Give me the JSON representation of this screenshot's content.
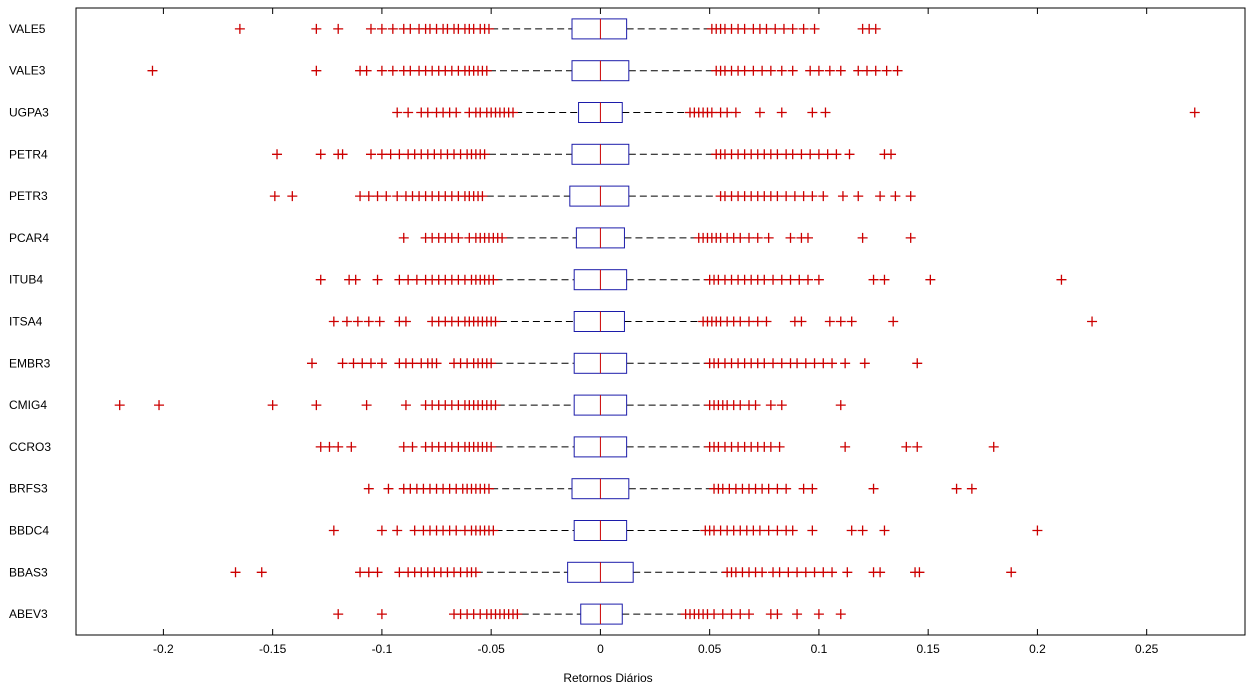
{
  "chart_data": {
    "type": "boxplot",
    "orientation": "horizontal",
    "xlabel": "Retornos Diários",
    "xlim": [
      -0.24,
      0.295
    ],
    "xticks": [
      -0.2,
      -0.15,
      -0.1,
      -0.05,
      0,
      0.05,
      0.1,
      0.15,
      0.2,
      0.25
    ],
    "xtick_labels": [
      "-0.2",
      "-0.15",
      "-0.1",
      "-0.05",
      "0",
      "0.05",
      "0.1",
      "0.15",
      "0.2",
      "0.25"
    ],
    "grid": false,
    "colors": {
      "box": "#1c1caa",
      "median": "#cc0000",
      "outlier": "#cc0000",
      "whisker": "#000000"
    },
    "series": [
      {
        "name": "VALE5",
        "q1": -0.013,
        "median": 0.0,
        "q3": 0.012,
        "whisker_low": -0.05,
        "whisker_high": 0.05,
        "outliers": [
          -0.165,
          -0.13,
          -0.12,
          -0.105,
          -0.1,
          -0.095,
          -0.09,
          -0.087,
          -0.083,
          -0.08,
          -0.078,
          -0.075,
          -0.072,
          -0.07,
          -0.067,
          -0.065,
          -0.062,
          -0.06,
          -0.058,
          -0.055,
          -0.053,
          -0.051,
          0.051,
          0.053,
          0.055,
          0.057,
          0.06,
          0.063,
          0.066,
          0.07,
          0.073,
          0.076,
          0.08,
          0.084,
          0.088,
          0.093,
          0.098,
          0.12,
          0.123,
          0.126
        ]
      },
      {
        "name": "VALE3",
        "q1": -0.013,
        "median": 0.0,
        "q3": 0.013,
        "whisker_low": -0.051,
        "whisker_high": 0.052,
        "outliers": [
          -0.205,
          -0.13,
          -0.11,
          -0.107,
          -0.1,
          -0.095,
          -0.09,
          -0.087,
          -0.083,
          -0.08,
          -0.077,
          -0.074,
          -0.071,
          -0.068,
          -0.065,
          -0.062,
          -0.06,
          -0.058,
          -0.056,
          -0.054,
          -0.052,
          0.053,
          0.055,
          0.057,
          0.06,
          0.063,
          0.066,
          0.07,
          0.074,
          0.078,
          0.083,
          0.088,
          0.096,
          0.1,
          0.105,
          0.11,
          0.118,
          0.122,
          0.126,
          0.131,
          0.136
        ]
      },
      {
        "name": "UGPA3",
        "q1": -0.01,
        "median": 0.0,
        "q3": 0.01,
        "whisker_low": -0.039,
        "whisker_high": 0.041,
        "outliers": [
          -0.093,
          -0.088,
          -0.082,
          -0.079,
          -0.075,
          -0.072,
          -0.069,
          -0.066,
          -0.06,
          -0.057,
          -0.055,
          -0.052,
          -0.05,
          -0.048,
          -0.046,
          -0.044,
          -0.042,
          -0.04,
          0.041,
          0.043,
          0.045,
          0.047,
          0.049,
          0.051,
          0.055,
          0.058,
          0.062,
          0.073,
          0.083,
          0.097,
          0.103,
          0.272
        ]
      },
      {
        "name": "PETR4",
        "q1": -0.013,
        "median": 0.0,
        "q3": 0.013,
        "whisker_low": -0.051,
        "whisker_high": 0.052,
        "outliers": [
          -0.148,
          -0.128,
          -0.12,
          -0.118,
          -0.105,
          -0.1,
          -0.096,
          -0.092,
          -0.088,
          -0.085,
          -0.082,
          -0.079,
          -0.076,
          -0.073,
          -0.07,
          -0.067,
          -0.064,
          -0.061,
          -0.059,
          -0.057,
          -0.055,
          -0.053,
          0.053,
          0.055,
          0.057,
          0.06,
          0.063,
          0.066,
          0.069,
          0.072,
          0.075,
          0.078,
          0.081,
          0.085,
          0.088,
          0.092,
          0.096,
          0.1,
          0.104,
          0.108,
          0.114,
          0.13,
          0.133
        ]
      },
      {
        "name": "PETR3",
        "q1": -0.014,
        "median": 0.0,
        "q3": 0.013,
        "whisker_low": -0.052,
        "whisker_high": 0.053,
        "outliers": [
          -0.149,
          -0.141,
          -0.11,
          -0.106,
          -0.102,
          -0.098,
          -0.093,
          -0.089,
          -0.086,
          -0.083,
          -0.08,
          -0.077,
          -0.074,
          -0.071,
          -0.068,
          -0.065,
          -0.062,
          -0.06,
          -0.058,
          -0.056,
          -0.054,
          0.055,
          0.057,
          0.06,
          0.063,
          0.066,
          0.069,
          0.072,
          0.075,
          0.078,
          0.081,
          0.085,
          0.089,
          0.093,
          0.097,
          0.102,
          0.111,
          0.118,
          0.128,
          0.135,
          0.142
        ]
      },
      {
        "name": "PCAR4",
        "q1": -0.011,
        "median": 0.0,
        "q3": 0.011,
        "whisker_low": -0.043,
        "whisker_high": 0.044,
        "outliers": [
          -0.09,
          -0.08,
          -0.077,
          -0.074,
          -0.071,
          -0.068,
          -0.065,
          -0.06,
          -0.057,
          -0.055,
          -0.053,
          -0.051,
          -0.049,
          -0.047,
          -0.045,
          0.045,
          0.047,
          0.049,
          0.051,
          0.053,
          0.055,
          0.058,
          0.061,
          0.064,
          0.068,
          0.072,
          0.077,
          0.087,
          0.092,
          0.095,
          0.12,
          0.142
        ]
      },
      {
        "name": "ITUB4",
        "q1": -0.012,
        "median": 0.0,
        "q3": 0.012,
        "whisker_low": -0.048,
        "whisker_high": 0.049,
        "outliers": [
          -0.128,
          -0.115,
          -0.112,
          -0.102,
          -0.092,
          -0.088,
          -0.084,
          -0.08,
          -0.077,
          -0.074,
          -0.071,
          -0.068,
          -0.065,
          -0.062,
          -0.059,
          -0.057,
          -0.055,
          -0.053,
          -0.051,
          -0.049,
          0.05,
          0.052,
          0.054,
          0.057,
          0.06,
          0.063,
          0.066,
          0.069,
          0.072,
          0.075,
          0.079,
          0.083,
          0.087,
          0.091,
          0.095,
          0.1,
          0.125,
          0.13,
          0.151,
          0.211
        ]
      },
      {
        "name": "ITSA4",
        "q1": -0.012,
        "median": 0.0,
        "q3": 0.011,
        "whisker_low": -0.046,
        "whisker_high": 0.047,
        "outliers": [
          -0.122,
          -0.116,
          -0.111,
          -0.106,
          -0.101,
          -0.092,
          -0.089,
          -0.077,
          -0.074,
          -0.071,
          -0.068,
          -0.065,
          -0.062,
          -0.06,
          -0.058,
          -0.056,
          -0.054,
          -0.052,
          -0.05,
          -0.048,
          0.047,
          0.049,
          0.051,
          0.053,
          0.055,
          0.058,
          0.061,
          0.064,
          0.068,
          0.072,
          0.076,
          0.089,
          0.092,
          0.105,
          0.11,
          0.115,
          0.134,
          0.225
        ]
      },
      {
        "name": "EMBR3",
        "q1": -0.012,
        "median": 0.0,
        "q3": 0.012,
        "whisker_low": -0.048,
        "whisker_high": 0.05,
        "outliers": [
          -0.132,
          -0.118,
          -0.113,
          -0.109,
          -0.105,
          -0.1,
          -0.092,
          -0.089,
          -0.086,
          -0.082,
          -0.079,
          -0.077,
          -0.075,
          -0.067,
          -0.064,
          -0.061,
          -0.058,
          -0.056,
          -0.054,
          -0.052,
          -0.05,
          0.05,
          0.052,
          0.054,
          0.057,
          0.06,
          0.063,
          0.066,
          0.069,
          0.072,
          0.075,
          0.079,
          0.083,
          0.087,
          0.09,
          0.094,
          0.098,
          0.102,
          0.106,
          0.112,
          0.121,
          0.145
        ]
      },
      {
        "name": "CMIG4",
        "q1": -0.012,
        "median": 0.0,
        "q3": 0.012,
        "whisker_low": -0.047,
        "whisker_high": 0.049,
        "outliers": [
          -0.22,
          -0.202,
          -0.15,
          -0.13,
          -0.107,
          -0.089,
          -0.08,
          -0.077,
          -0.074,
          -0.071,
          -0.068,
          -0.065,
          -0.062,
          -0.06,
          -0.058,
          -0.056,
          -0.054,
          -0.052,
          -0.05,
          -0.048,
          0.05,
          0.052,
          0.054,
          0.056,
          0.058,
          0.061,
          0.064,
          0.068,
          0.071,
          0.078,
          0.083,
          0.11
        ]
      },
      {
        "name": "CCRO3",
        "q1": -0.012,
        "median": 0.0,
        "q3": 0.012,
        "whisker_low": -0.048,
        "whisker_high": 0.05,
        "outliers": [
          -0.128,
          -0.124,
          -0.12,
          -0.114,
          -0.09,
          -0.086,
          -0.08,
          -0.077,
          -0.074,
          -0.071,
          -0.068,
          -0.065,
          -0.062,
          -0.06,
          -0.058,
          -0.056,
          -0.054,
          -0.052,
          -0.05,
          0.05,
          0.052,
          0.054,
          0.057,
          0.06,
          0.063,
          0.066,
          0.069,
          0.072,
          0.075,
          0.078,
          0.082,
          0.112,
          0.14,
          0.145,
          0.18
        ]
      },
      {
        "name": "BRFS3",
        "q1": -0.013,
        "median": 0.0,
        "q3": 0.013,
        "whisker_low": -0.05,
        "whisker_high": 0.051,
        "outliers": [
          -0.106,
          -0.097,
          -0.09,
          -0.087,
          -0.084,
          -0.081,
          -0.078,
          -0.075,
          -0.072,
          -0.069,
          -0.066,
          -0.063,
          -0.061,
          -0.059,
          -0.057,
          -0.055,
          -0.053,
          -0.051,
          0.052,
          0.054,
          0.056,
          0.059,
          0.062,
          0.065,
          0.068,
          0.071,
          0.074,
          0.077,
          0.081,
          0.085,
          0.093,
          0.097,
          0.125,
          0.163,
          0.17
        ]
      },
      {
        "name": "BBDC4",
        "q1": -0.012,
        "median": 0.0,
        "q3": 0.012,
        "whisker_low": -0.048,
        "whisker_high": 0.047,
        "outliers": [
          -0.122,
          -0.1,
          -0.093,
          -0.085,
          -0.081,
          -0.078,
          -0.075,
          -0.072,
          -0.069,
          -0.066,
          -0.062,
          -0.059,
          -0.057,
          -0.055,
          -0.053,
          -0.051,
          -0.049,
          0.048,
          0.05,
          0.052,
          0.055,
          0.058,
          0.061,
          0.064,
          0.067,
          0.07,
          0.073,
          0.077,
          0.081,
          0.085,
          0.088,
          0.097,
          0.115,
          0.12,
          0.13,
          0.2
        ]
      },
      {
        "name": "BBAS3",
        "q1": -0.015,
        "median": 0.0,
        "q3": 0.015,
        "whisker_low": -0.057,
        "whisker_high": 0.058,
        "outliers": [
          -0.167,
          -0.155,
          -0.11,
          -0.106,
          -0.102,
          -0.092,
          -0.088,
          -0.085,
          -0.082,
          -0.079,
          -0.076,
          -0.073,
          -0.07,
          -0.067,
          -0.064,
          -0.061,
          -0.059,
          -0.057,
          0.058,
          0.06,
          0.062,
          0.065,
          0.068,
          0.071,
          0.074,
          0.079,
          0.082,
          0.086,
          0.09,
          0.094,
          0.098,
          0.102,
          0.106,
          0.113,
          0.125,
          0.128,
          0.144,
          0.146,
          0.188
        ]
      },
      {
        "name": "ABEV3",
        "q1": -0.009,
        "median": 0.0,
        "q3": 0.01,
        "whisker_low": -0.036,
        "whisker_high": 0.039,
        "outliers": [
          -0.12,
          -0.1,
          -0.067,
          -0.064,
          -0.061,
          -0.058,
          -0.055,
          -0.052,
          -0.05,
          -0.048,
          -0.046,
          -0.044,
          -0.042,
          -0.04,
          -0.038,
          0.039,
          0.041,
          0.043,
          0.045,
          0.047,
          0.049,
          0.052,
          0.056,
          0.06,
          0.064,
          0.068,
          0.078,
          0.081,
          0.09,
          0.1,
          0.11
        ]
      }
    ]
  }
}
